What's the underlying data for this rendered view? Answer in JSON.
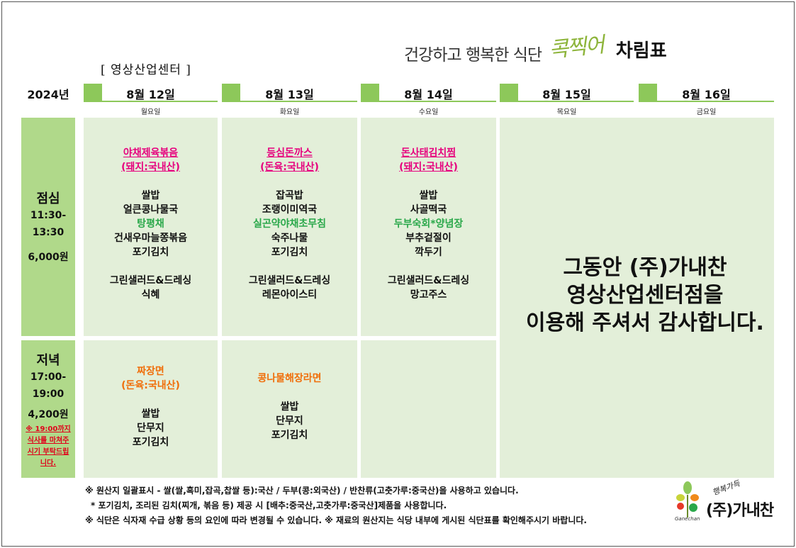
{
  "header": {
    "phrase": "건강하고 행복한 식단",
    "brand": "콕찍어",
    "title": "차림표",
    "location": "[ 영상산업센터 ]"
  },
  "year": "2024년",
  "days": [
    {
      "date": "8월 12일",
      "weekday": "월요일"
    },
    {
      "date": "8월 13일",
      "weekday": "화요일"
    },
    {
      "date": "8월 14일",
      "weekday": "수요일"
    },
    {
      "date": "8월 15일",
      "weekday": "목요일"
    },
    {
      "date": "8월 16일",
      "weekday": "금요일"
    }
  ],
  "lunch": {
    "name": "점심",
    "time_start": "11:30-",
    "time_end": "13:30",
    "price": "6,000원",
    "menus": [
      {
        "main": "야채제육볶음",
        "origin": "(돼지:국내산)",
        "items": [
          "쌀밥",
          "얼큰콩나물국",
          "탕평채",
          "건새우마늘쫑볶음",
          "포기김치"
        ],
        "extras": [
          "그린샐러드&드레싱",
          "식혜"
        ]
      },
      {
        "main": "등심돈까스",
        "origin": "(돈육:국내산)",
        "items": [
          "잡곡밥",
          "조랭이미역국",
          "실곤약야채초무침",
          "숙주나물",
          "포기김치"
        ],
        "extras": [
          "그린샐러드&드레싱",
          "레몬아이스티"
        ]
      },
      {
        "main": "돈사태김치찜",
        "origin": "(돼지:국내산)",
        "items": [
          "쌀밥",
          "사골떡국",
          "두부숙회*양념장",
          "부추겉절이",
          "깍두기"
        ],
        "extras": [
          "그린샐러드&드레싱",
          "망고주스"
        ]
      }
    ]
  },
  "dinner": {
    "name": "저녁",
    "time_start": "17:00-",
    "time_end": "19:00",
    "price": "4,200원",
    "note": "※ 19:00까지 식사를 마쳐주시기 부탁드립니다.",
    "menus": [
      {
        "main": "짜장면",
        "origin": "(돈육:국내산)",
        "items": [
          "쌀밥",
          "단무지",
          "포기김치"
        ]
      },
      {
        "main": "콩나물해장라면",
        "items": [
          "쌀밥",
          "단무지",
          "포기김치"
        ]
      }
    ]
  },
  "thanks": {
    "line1": "그동안 (주)가내찬",
    "line2": "영상산업센터점을",
    "line3": "이용해 주셔서 감사합니다."
  },
  "footnotes": {
    "line1": "※ 원산지 일괄표시 - 쌀(쌀,흑미,잡곡,찹쌀 등):국산 / 두부(콩:외국산) / 반찬류(고춧가루:중국산)을 사용하고 있습니다.",
    "line2": "* 포기김치, 조리된 김치(찌개, 볶음 등) 제공 시  [배추:중국산,고춧가루:중국산]제품을 사용합니다.",
    "line3": "※ 식단은 식자재 수급 상황 등의 요인에 따라 변경될 수 있습니다. ※ 재료의 원산지는 식당 내부에 게시된 식단표를 확인해주시기 바랍니다."
  },
  "logo": {
    "slogan": "행복가득",
    "name": "(주)가내찬",
    "english": "Ganechan"
  },
  "colors": {
    "accent_green": "#8dc85a",
    "label_green": "#b0d98a",
    "cell_bg": "#e3efd9",
    "main_dish_pink": "#e6007e",
    "highlight_green": "#2aa84a",
    "dinner_orange": "#f06e0a",
    "note_red": "#e0001a"
  }
}
